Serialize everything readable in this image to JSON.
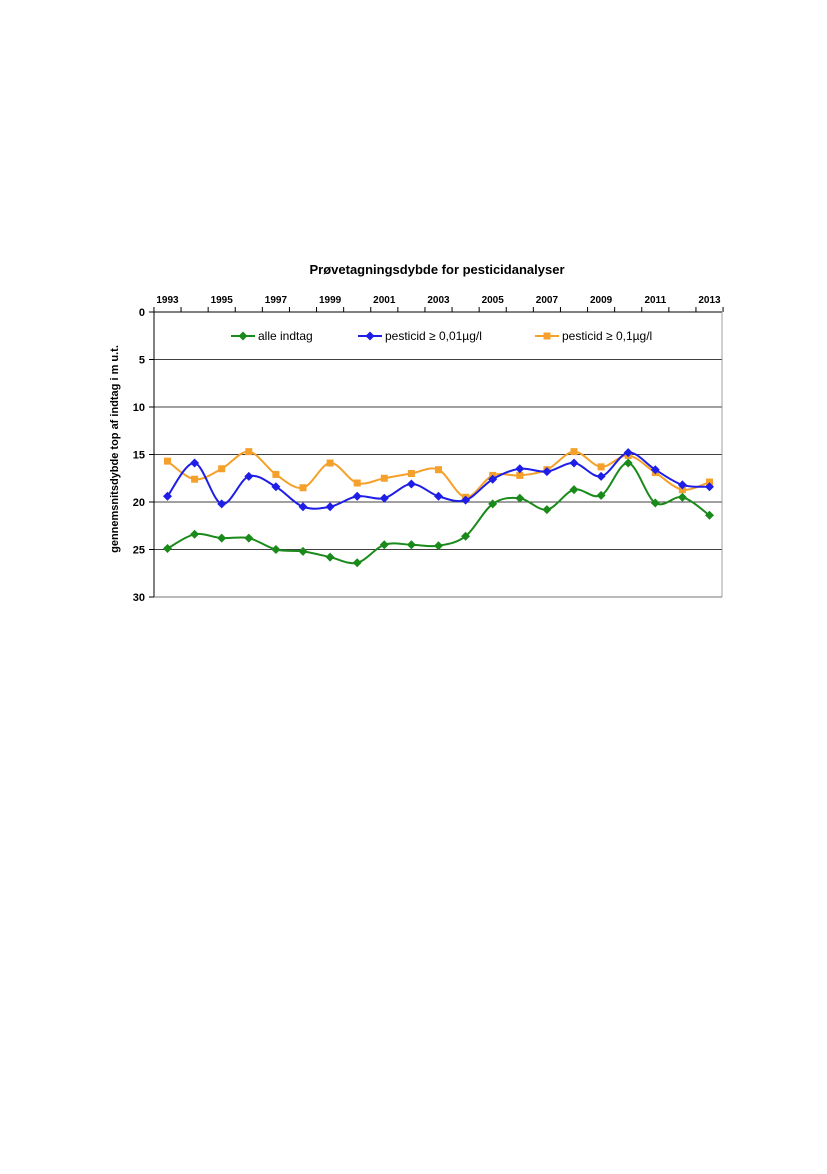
{
  "chart_data": {
    "type": "line",
    "title": "Prøvetagningsdybde for pesticidanalyser",
    "xlabel": "",
    "ylabel": "gennemsnitsdybde  top af indtag  i m u.t.",
    "x": [
      1993,
      1994,
      1995,
      1996,
      1997,
      1998,
      1999,
      2000,
      2001,
      2002,
      2003,
      2004,
      2005,
      2006,
      2007,
      2008,
      2009,
      2010,
      2011,
      2012,
      2013
    ],
    "x_tick_labels": [
      "1993",
      "1995",
      "1997",
      "1999",
      "2001",
      "2003",
      "2005",
      "2007",
      "2009",
      "2011",
      "2013"
    ],
    "y_tick_labels": [
      "0",
      "5",
      "10",
      "15",
      "20",
      "25",
      "30"
    ],
    "ylim": [
      0,
      30
    ],
    "y_inverted": true,
    "x_axis_position": "top",
    "grid": "horizontal",
    "legend_position": "top, inside plot",
    "series": [
      {
        "name": "alle indtag",
        "color": "#1a8a1a",
        "marker": "diamond",
        "values": [
          24.9,
          23.4,
          23.8,
          23.8,
          25.0,
          25.2,
          25.8,
          26.4,
          24.5,
          24.5,
          24.6,
          23.6,
          20.2,
          19.6,
          20.8,
          18.7,
          19.3,
          15.9,
          20.1,
          19.5,
          21.4
        ]
      },
      {
        "name": "pesticid ≥ 0,01µg/l",
        "color": "#1e1ee6",
        "marker": "diamond",
        "values": [
          19.4,
          15.9,
          20.2,
          17.3,
          18.4,
          20.5,
          20.5,
          19.4,
          19.6,
          18.1,
          19.4,
          19.8,
          17.6,
          16.5,
          16.8,
          15.9,
          17.3,
          14.8,
          16.6,
          18.2,
          18.4
        ]
      },
      {
        "name": "pesticid ≥ 0,1µg/l",
        "color": "#f5a02a",
        "marker": "square",
        "values": [
          15.7,
          17.6,
          16.5,
          14.7,
          17.1,
          18.5,
          15.9,
          18.0,
          17.5,
          17.0,
          16.6,
          19.5,
          17.2,
          17.2,
          16.6,
          14.7,
          16.3,
          15.1,
          16.9,
          18.7,
          17.9
        ]
      }
    ]
  }
}
